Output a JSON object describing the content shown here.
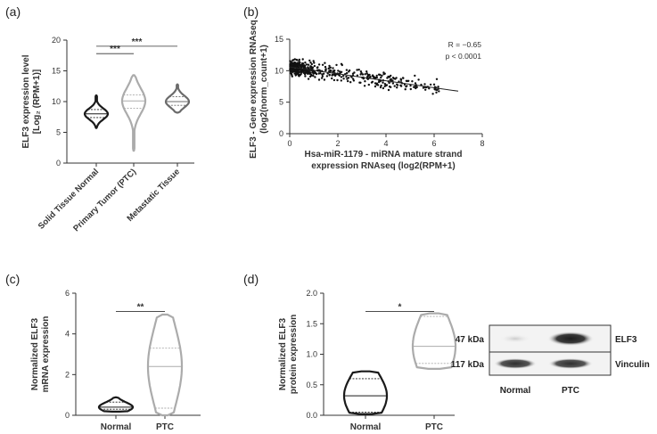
{
  "panels": {
    "a": {
      "letter": "(a)"
    },
    "b": {
      "letter": "(b)"
    },
    "c": {
      "letter": "(c)"
    },
    "d": {
      "letter": "(d)"
    }
  },
  "colors": {
    "black": "#1a1a1a",
    "dark_gray": "#6b6b6b",
    "light_gray": "#ababab",
    "axis": "#333333"
  },
  "chart_data": [
    {
      "id": "a",
      "type": "violin",
      "ylabel_line1": "ELF3 expression level",
      "ylabel_line2": "[Log₂ (RPM+1)]",
      "ylim": [
        0,
        20
      ],
      "yticks": [
        "0",
        "5",
        "10",
        "15",
        "20"
      ],
      "categories": [
        "Solid Tissue Normal",
        "Primary Tumor (PTC)",
        "Metastatic Tissue"
      ],
      "series": [
        {
          "min": 5.7,
          "q1": 7.4,
          "median": 8.0,
          "q3": 8.7,
          "max": 11.0,
          "color": "#1a1a1a"
        },
        {
          "min": 2.0,
          "q1": 8.9,
          "median": 10.1,
          "q3": 11.1,
          "max": 14.3,
          "color": "#ababab"
        },
        {
          "min": 8.2,
          "q1": 9.4,
          "median": 10.0,
          "q3": 10.8,
          "max": 12.8,
          "color": "#6b6b6b"
        }
      ],
      "significance": [
        {
          "from": 0,
          "to": 2,
          "label": "***",
          "y": 19.0
        },
        {
          "from": 0,
          "to": 1,
          "label": "***",
          "y": 17.8
        }
      ]
    },
    {
      "id": "b",
      "type": "scatter",
      "ylabel_line1": "ELF3 - Gene expression RNAseq",
      "ylabel_line2": "(log2(norm_count+1)",
      "xlabel_line1": "Hsa-miR-1179 - miRNA mature strand",
      "xlabel_line2": "expression RNAseq (log2(RPM+1)",
      "xlim": [
        0,
        8
      ],
      "ylim": [
        0,
        15
      ],
      "xticks": [
        "0",
        "2",
        "4",
        "6",
        "8"
      ],
      "yticks": [
        "0",
        "5",
        "10",
        "15"
      ],
      "annotation_r": "R = −0.65",
      "annotation_p": "p < 0.0001",
      "n_points": 500,
      "trend": {
        "slope": -0.55,
        "intercept": 10.6,
        "x_range": [
          0,
          7
        ]
      }
    },
    {
      "id": "c",
      "type": "violin",
      "ylabel_line1": "Normalized ELF3",
      "ylabel_line2": "mRNA expression",
      "ylim": [
        0,
        6
      ],
      "yticks": [
        "0",
        "2",
        "4",
        "6"
      ],
      "categories": [
        "Normal",
        "PTC"
      ],
      "series": [
        {
          "min": 0.18,
          "q1": 0.3,
          "median": 0.4,
          "q3": 0.65,
          "max": 0.88,
          "color": "#1a1a1a"
        },
        {
          "min": 0.0,
          "q1": 0.35,
          "median": 2.4,
          "q3": 3.3,
          "max": 4.95,
          "color": "#ababab"
        }
      ],
      "significance": [
        {
          "from": 0,
          "to": 1,
          "label": "**",
          "y": 5.1
        }
      ]
    },
    {
      "id": "d",
      "type": "violin",
      "ylabel_line1": "Normalized ELF3",
      "ylabel_line2": "protein expression",
      "ylim": [
        0,
        2.0
      ],
      "yticks": [
        "0.0",
        "0.5",
        "1.0",
        "1.5",
        "2.0"
      ],
      "categories": [
        "Normal",
        "PTC"
      ],
      "series": [
        {
          "min": 0.02,
          "q1": 0.05,
          "median": 0.32,
          "q3": 0.6,
          "max": 0.72,
          "color": "#1a1a1a"
        },
        {
          "min": 0.76,
          "q1": 0.85,
          "median": 1.13,
          "q3": 1.62,
          "max": 1.67,
          "color": "#ababab"
        }
      ],
      "significance": [
        {
          "from": 0,
          "to": 1,
          "label": "*",
          "y": 1.7
        }
      ]
    }
  ],
  "blot": {
    "rows": [
      {
        "kda": "47 kDa",
        "protein": "ELF3"
      },
      {
        "kda": "117 kDa",
        "protein": "Vinculin"
      }
    ],
    "lanes": [
      "Normal",
      "PTC"
    ]
  }
}
